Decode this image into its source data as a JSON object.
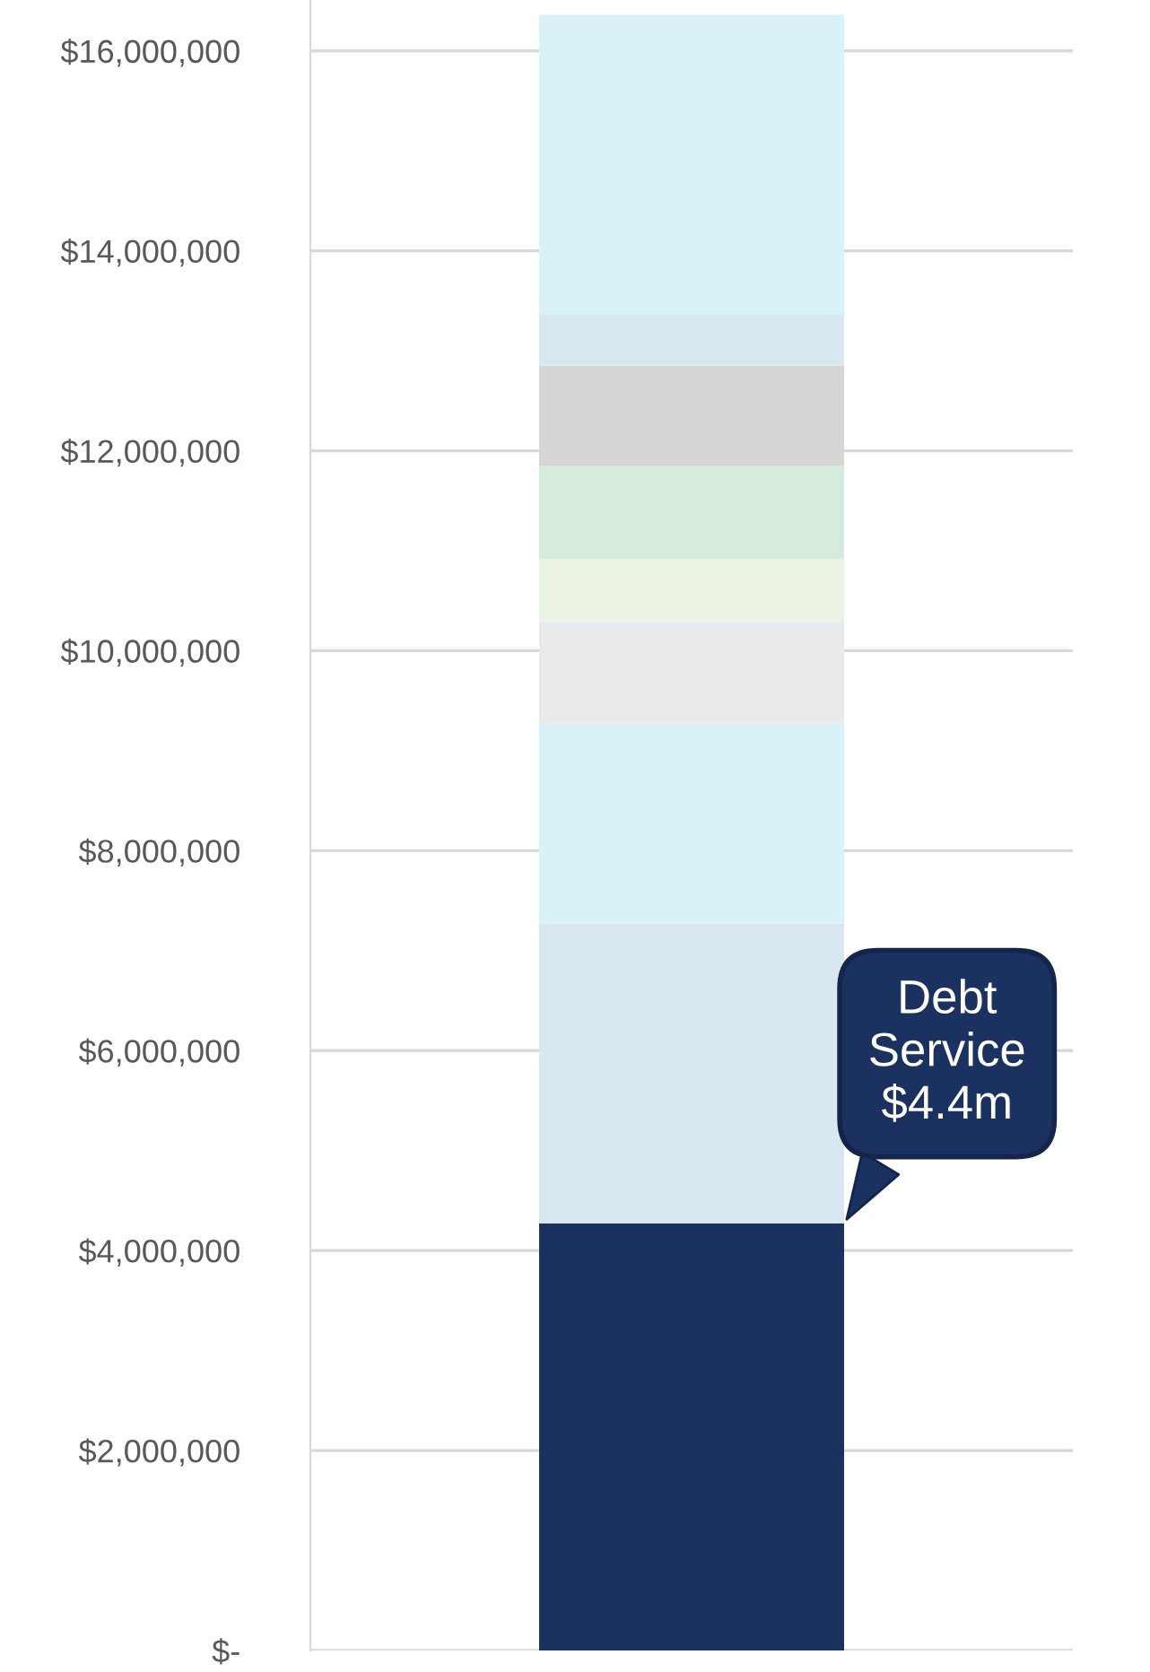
{
  "chart_data": {
    "type": "bar",
    "stacked": true,
    "categories": [
      null
    ],
    "series": [
      {
        "color": "#1b3160",
        "values": [
          4270000
        ]
      },
      {
        "color": "#d9e7f0",
        "values": [
          3000000
        ]
      },
      {
        "color": "#d8f2f7",
        "values": [
          2000000
        ]
      },
      {
        "color": "#e9eaec",
        "values": [
          1020000
        ]
      },
      {
        "color": "#ebf4e4",
        "values": [
          630000
        ]
      },
      {
        "color": "#d5ebdc",
        "values": [
          930000
        ]
      },
      {
        "color": "#d6d6d6",
        "values": [
          1000000
        ]
      },
      {
        "color": "#d9e7f0",
        "values": [
          510000
        ]
      },
      {
        "color": "#d8f2f7",
        "values": [
          3000000
        ]
      }
    ],
    "ylim": [
      0,
      16500000
    ],
    "yticks": [
      {
        "value": 0,
        "label": "$-"
      },
      {
        "value": 2000000,
        "label": "$2,000,000"
      },
      {
        "value": 4000000,
        "label": "$4,000,000"
      },
      {
        "value": 6000000,
        "label": "$6,000,000"
      },
      {
        "value": 8000000,
        "label": "$8,000,000"
      },
      {
        "value": 10000000,
        "label": "$10,000,000"
      },
      {
        "value": 12000000,
        "label": "$12,000,000"
      },
      {
        "value": 14000000,
        "label": "$14,000,000"
      },
      {
        "value": 16000000,
        "label": "$16,000,000"
      }
    ],
    "grid": "y",
    "legend": false,
    "annotations": [
      "Debt\nService\n$4.4m"
    ]
  }
}
